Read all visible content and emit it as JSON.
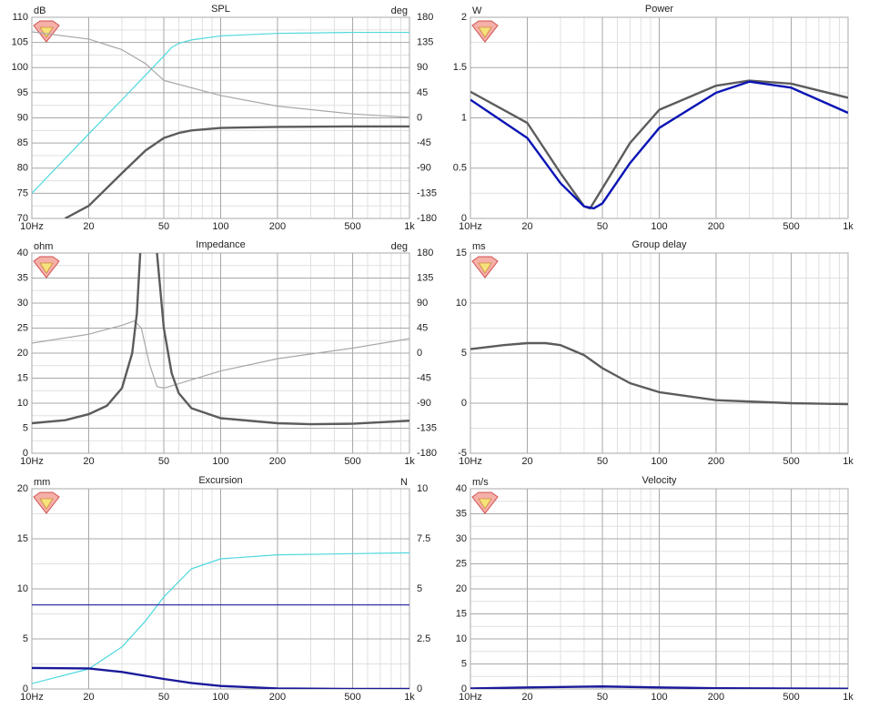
{
  "chart_data": [
    {
      "type": "line",
      "title": "SPL",
      "y_label": "dB",
      "y2_label": "deg",
      "xscale": "log",
      "grid": true,
      "xlim": [
        10,
        1000
      ],
      "xticks": [
        {
          "value": 10,
          "label": "10Hz"
        },
        20,
        50,
        100,
        200,
        500,
        {
          "value": 1000,
          "label": "1k"
        }
      ],
      "ylim": [
        70,
        110
      ],
      "yticks": [
        70,
        75,
        80,
        85,
        90,
        95,
        100,
        105,
        110
      ],
      "y2lim": [
        -180,
        180
      ],
      "y2ticks": [
        -180,
        -135,
        -90,
        -45,
        0,
        45,
        90,
        135,
        180
      ],
      "series": [
        {
          "color": "#4fd8de",
          "width": 1.2,
          "x": [
            10,
            20,
            30,
            40,
            50,
            55,
            60,
            70,
            100,
            200,
            500,
            1000
          ],
          "values": [
            75,
            86.8,
            93.6,
            98.5,
            102.3,
            104,
            104.8,
            105.5,
            106.3,
            106.8,
            107,
            107
          ]
        },
        {
          "color": "#5c5c5c",
          "width": 2.4,
          "x": [
            15,
            20,
            30,
            40,
            50,
            60,
            70,
            100,
            200,
            500,
            1000
          ],
          "values": [
            70,
            72.5,
            79,
            83.5,
            86,
            87,
            87.5,
            88,
            88.2,
            88.3,
            88.3
          ]
        },
        {
          "color": "#a8a8a8",
          "width": 1.2,
          "axis": "y2",
          "x": [
            10,
            20,
            30,
            40,
            50,
            100,
            200,
            500,
            1000
          ],
          "values": [
            154,
            141,
            122,
            97,
            67,
            40,
            21,
            7,
            1
          ]
        }
      ]
    },
    {
      "type": "line",
      "title": "Power",
      "y_label": "W",
      "xscale": "log",
      "grid": true,
      "xlim": [
        10,
        1000
      ],
      "xticks": [
        {
          "value": 10,
          "label": "10Hz"
        },
        20,
        50,
        100,
        200,
        500,
        {
          "value": 1000,
          "label": "1k"
        }
      ],
      "ylim": [
        0,
        2
      ],
      "yticks": [
        0,
        0.5,
        1,
        1.5,
        2
      ],
      "series": [
        {
          "color": "#5c5c5c",
          "width": 2.4,
          "x": [
            10,
            20,
            30,
            40,
            43,
            50,
            70,
            100,
            200,
            300,
            500,
            1000
          ],
          "values": [
            1.26,
            0.95,
            0.45,
            0.12,
            0.1,
            0.3,
            0.75,
            1.08,
            1.32,
            1.37,
            1.34,
            1.2
          ]
        },
        {
          "color": "#0a14b4",
          "width": 2.4,
          "x": [
            10,
            20,
            30,
            40,
            45,
            50,
            70,
            100,
            200,
            300,
            500,
            1000
          ],
          "values": [
            1.18,
            0.8,
            0.35,
            0.12,
            0.1,
            0.15,
            0.55,
            0.9,
            1.25,
            1.36,
            1.3,
            1.05
          ]
        }
      ]
    },
    {
      "type": "line",
      "title": "Impedance",
      "y_label": "ohm",
      "y2_label": "deg",
      "xscale": "log",
      "grid": true,
      "xlim": [
        10,
        1000
      ],
      "xticks": [
        {
          "value": 10,
          "label": "10Hz"
        },
        20,
        50,
        100,
        200,
        500,
        {
          "value": 1000,
          "label": "1k"
        }
      ],
      "ylim": [
        0,
        40
      ],
      "yticks": [
        0,
        5,
        10,
        15,
        20,
        25,
        30,
        35,
        40
      ],
      "y2lim": [
        -180,
        180
      ],
      "y2ticks": [
        -180,
        -135,
        -90,
        -45,
        0,
        45,
        90,
        135,
        180
      ],
      "series": [
        {
          "color": "#a8a8a8",
          "width": 1.2,
          "axis": "y2",
          "x": [
            10,
            20,
            30,
            35,
            38,
            42,
            46,
            50,
            60,
            100,
            200,
            500,
            1000
          ],
          "values": [
            18,
            34,
            50,
            58,
            45,
            -20,
            -60,
            -63,
            -55,
            -32,
            -10,
            9,
            26
          ]
        },
        {
          "color": "#5c5c5c",
          "width": 2.4,
          "x": [
            10,
            15,
            20,
            25,
            30,
            34,
            36,
            37.5,
            42,
            46,
            50,
            55,
            60,
            70,
            100,
            200,
            300,
            500,
            1000
          ],
          "values": [
            6,
            6.6,
            7.8,
            9.5,
            13,
            20,
            28,
            40,
            null,
            40,
            25,
            16,
            12,
            9,
            7,
            6,
            5.8,
            5.9,
            6.5
          ]
        }
      ]
    },
    {
      "type": "line",
      "title": "Group delay",
      "y_label": "ms",
      "xscale": "log",
      "grid": true,
      "xlim": [
        10,
        1000
      ],
      "xticks": [
        {
          "value": 10,
          "label": "10Hz"
        },
        20,
        50,
        100,
        200,
        500,
        {
          "value": 1000,
          "label": "1k"
        }
      ],
      "ylim": [
        -5,
        15
      ],
      "yticks": [
        -5,
        0,
        5,
        10,
        15
      ],
      "series": [
        {
          "color": "#5c5c5c",
          "width": 2.4,
          "x": [
            10,
            15,
            20,
            25,
            30,
            40,
            50,
            70,
            100,
            200,
            500,
            1000
          ],
          "values": [
            5.4,
            5.8,
            6,
            6,
            5.8,
            4.8,
            3.5,
            2,
            1.1,
            0.3,
            0,
            -0.1
          ]
        }
      ]
    },
    {
      "type": "line",
      "title": "Excursion",
      "y_label": "mm",
      "y2_label": "N",
      "xscale": "log",
      "grid": true,
      "xlim": [
        10,
        1000
      ],
      "xticks": [
        {
          "value": 10,
          "label": "10Hz"
        },
        20,
        50,
        100,
        200,
        500,
        {
          "value": 1000,
          "label": "1k"
        }
      ],
      "ylim": [
        0,
        20
      ],
      "yticks": [
        0,
        5,
        10,
        15,
        20
      ],
      "y2lim": [
        0,
        10
      ],
      "y2ticks": [
        0,
        2.5,
        5,
        7.5,
        10
      ],
      "series": [
        {
          "color": "#4fd8de",
          "width": 1.2,
          "axis": "y2",
          "x": [
            10,
            20,
            30,
            40,
            50,
            70,
            100,
            200,
            1000
          ],
          "values": [
            0.27,
            1,
            2.1,
            3.4,
            4.6,
            6,
            6.5,
            6.7,
            6.8
          ]
        },
        {
          "color": "#3a3aaa",
          "width": 1.4,
          "x": [
            10,
            1000
          ],
          "values": [
            8.4,
            8.4
          ]
        },
        {
          "color": "#1a1a9a",
          "width": 2.4,
          "x": [
            10,
            20,
            30,
            50,
            70,
            100,
            200,
            500,
            1000
          ],
          "values": [
            2.1,
            2.05,
            1.7,
            1,
            0.6,
            0.3,
            0.05,
            0,
            0
          ]
        }
      ]
    },
    {
      "type": "line",
      "title": "Velocity",
      "y_label": "m/s",
      "xscale": "log",
      "grid": true,
      "xlim": [
        10,
        1000
      ],
      "xticks": [
        {
          "value": 10,
          "label": "10Hz"
        },
        20,
        50,
        100,
        200,
        500,
        {
          "value": 1000,
          "label": "1k"
        }
      ],
      "ylim": [
        0,
        40
      ],
      "yticks": [
        0,
        5,
        10,
        15,
        20,
        25,
        30,
        35,
        40
      ],
      "series": [
        {
          "color": "#1a1a9a",
          "width": 2.4,
          "x": [
            10,
            20,
            50,
            100,
            200,
            1000
          ],
          "values": [
            0.1,
            0.3,
            0.5,
            0.3,
            0.15,
            0.05
          ]
        }
      ]
    }
  ]
}
